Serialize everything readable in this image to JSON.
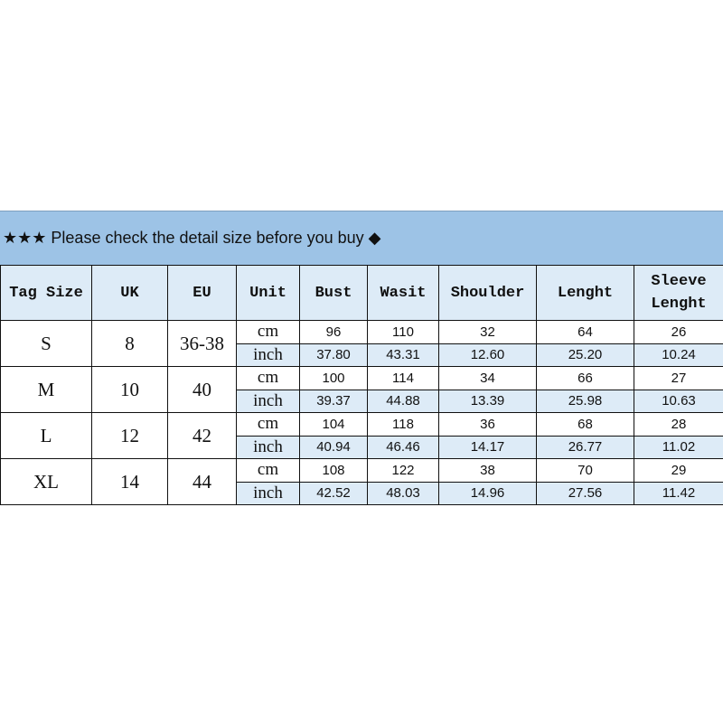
{
  "banner": {
    "text": "★★★ Please check the detail size before you buy ◆"
  },
  "colors": {
    "banner": "#9DC3E6",
    "header": "#DDEBF7",
    "inch_row": "#DDEBF7",
    "grid": "#111111"
  },
  "headers": [
    "Tag Size",
    "UK",
    "EU",
    "Unit",
    "Bust",
    "Wasit",
    "Shoulder",
    "Lenght",
    "Sleeve Lenght"
  ],
  "rows": [
    {
      "tag": "S",
      "uk": "8",
      "eu": "36-38",
      "cm": {
        "unit": "cm",
        "values": [
          "96",
          "110",
          "32",
          "64",
          "26"
        ]
      },
      "inch": {
        "unit": "inch",
        "values": [
          "37.80",
          "43.31",
          "12.60",
          "25.20",
          "10.24"
        ]
      }
    },
    {
      "tag": "M",
      "uk": "10",
      "eu": "40",
      "cm": {
        "unit": "cm",
        "values": [
          "100",
          "114",
          "34",
          "66",
          "27"
        ]
      },
      "inch": {
        "unit": "inch",
        "values": [
          "39.37",
          "44.88",
          "13.39",
          "25.98",
          "10.63"
        ]
      }
    },
    {
      "tag": "L",
      "uk": "12",
      "eu": "42",
      "cm": {
        "unit": "cm",
        "values": [
          "104",
          "118",
          "36",
          "68",
          "28"
        ]
      },
      "inch": {
        "unit": "inch",
        "values": [
          "40.94",
          "46.46",
          "14.17",
          "26.77",
          "11.02"
        ]
      }
    },
    {
      "tag": "XL",
      "uk": "14",
      "eu": "44",
      "cm": {
        "unit": "cm",
        "values": [
          "108",
          "122",
          "38",
          "70",
          "29"
        ]
      },
      "inch": {
        "unit": "inch",
        "values": [
          "42.52",
          "48.03",
          "14.96",
          "27.56",
          "11.42"
        ]
      }
    }
  ]
}
